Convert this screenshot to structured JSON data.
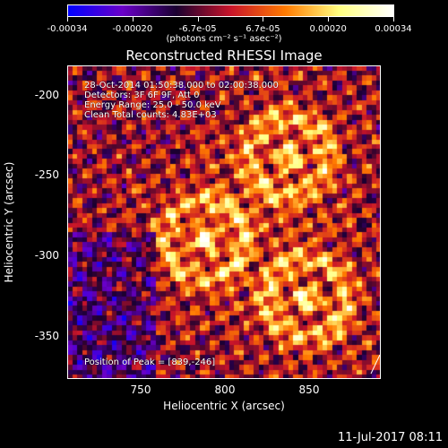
{
  "colorbar": {
    "ticks": [
      "-0.00034",
      "-0.00020",
      "-6.7e-05",
      "6.7e-05",
      "0.00020",
      "0.00034"
    ],
    "tick_fractions": [
      0,
      0.2,
      0.4,
      0.6,
      0.8,
      1
    ],
    "unit_label": "(photons cm⁻² s⁻¹ asec⁻²)"
  },
  "plot": {
    "title": "Reconstructed RHESSI Image",
    "annotations": {
      "time": "28-Oct-2014 01:50:38.000 to 02:00:38.000",
      "detectors": "Detectors: 3F 6F 9F, Att 0",
      "energy": "Energy Range: 25.0 - 50.0 keV",
      "clean": "Clean      Total counts: 4.83E+03",
      "peak": "Position of Peak = [839,-246]"
    },
    "xlabel": "Heliocentric X (arcsec)",
    "ylabel": "Heliocentric Y (arcsec)",
    "x_ticks": [
      "750",
      "800",
      "850"
    ],
    "y_ticks": [
      "-200",
      "-250",
      "-300",
      "-350"
    ]
  },
  "footer": {
    "date": "11-Jul-2017 08:11"
  },
  "chart_data": {
    "type": "heatmap",
    "title": "Reconstructed RHESSI Image",
    "xlabel": "Heliocentric X (arcsec)",
    "ylabel": "Heliocentric Y (arcsec)",
    "xlim": [
      709,
      894
    ],
    "ylim": [
      -378,
      -192
    ],
    "x_ticks": [
      750,
      800,
      850
    ],
    "y_ticks": [
      -200,
      -250,
      -300,
      -350
    ],
    "color_range": [
      -0.00034,
      0.00034
    ],
    "colorbar_ticks": [
      -0.00034,
      -0.0002,
      -6.7e-05,
      6.7e-05,
      0.0002,
      0.00034
    ],
    "peak_position": [
      839,
      -246
    ],
    "bright_regions": [
      {
        "x": 839,
        "y": -246
      },
      {
        "x": 850,
        "y": -330
      },
      {
        "x": 790,
        "y": -295
      }
    ],
    "colormap": [
      "#0000ff",
      "#6a00c8",
      "#1a0030",
      "#c8142a",
      "#ff7a00",
      "#ffff80",
      "#ffffff"
    ]
  }
}
